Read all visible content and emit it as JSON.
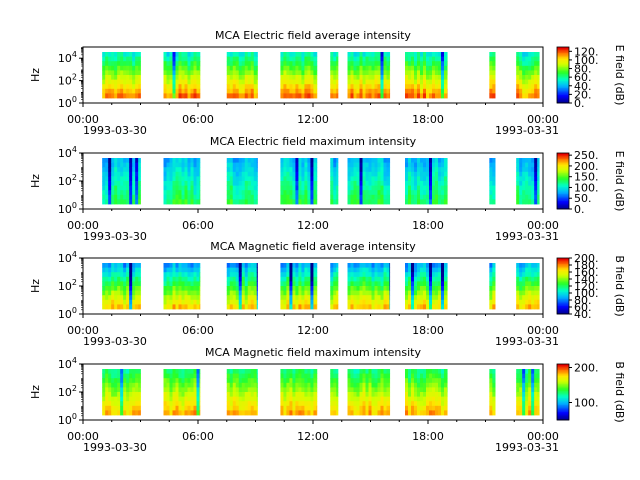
{
  "chart_data": [
    {
      "type": "heatmap",
      "title": "MCA  Electric field average intensity",
      "ylabel": "Hz",
      "yscale": "log",
      "ylim": [
        1,
        100000
      ],
      "ytick_labels": [
        "10^0",
        "10^2",
        "10^4"
      ],
      "x_date_label": "1993-03-30",
      "x_date_label_right": "1993-03-31",
      "x_tick_labels": [
        "00:00",
        "06:00",
        "12:00",
        "18:00",
        "00:00"
      ],
      "colorbar": {
        "label": "E field (dB)",
        "range": [
          0,
          130
        ],
        "ticks": [
          0,
          20,
          40,
          60,
          80,
          100,
          120
        ],
        "tick_labels": [
          "0.",
          "20.",
          "40.",
          "60.",
          "80.",
          "100.",
          "120."
        ]
      },
      "data_segments_hours": [
        [
          1.0,
          3.0
        ],
        [
          4.2,
          6.1
        ],
        [
          7.5,
          9.1
        ],
        [
          10.3,
          12.2
        ],
        [
          12.9,
          13.3
        ],
        [
          13.8,
          16.0
        ],
        [
          16.8,
          19.0
        ],
        [
          21.2,
          21.5
        ],
        [
          22.6,
          23.8
        ]
      ]
    },
    {
      "type": "heatmap",
      "title": "MCA  Electric field maximum intensity",
      "ylabel": "Hz",
      "yscale": "log",
      "ylim": [
        1,
        10000
      ],
      "ytick_labels": [
        "10^0",
        "10^2",
        "10^4"
      ],
      "x_date_label": "1993-03-30",
      "x_date_label_right": "1993-03-31",
      "x_tick_labels": [
        "00:00",
        "06:00",
        "12:00",
        "18:00",
        "00:00"
      ],
      "colorbar": {
        "label": "E field (dB)",
        "range": [
          0,
          260
        ],
        "ticks": [
          0,
          50,
          100,
          150,
          200,
          250
        ],
        "tick_labels": [
          "0.",
          "50.",
          "100.",
          "150.",
          "200.",
          "250."
        ]
      },
      "data_segments_hours": [
        [
          1.0,
          3.0
        ],
        [
          4.2,
          6.1
        ],
        [
          7.5,
          9.1
        ],
        [
          10.3,
          12.2
        ],
        [
          12.9,
          13.3
        ],
        [
          13.8,
          16.0
        ],
        [
          16.8,
          19.0
        ],
        [
          21.2,
          21.5
        ],
        [
          22.6,
          23.8
        ]
      ]
    },
    {
      "type": "heatmap",
      "title": "MCA  Magnetic field average intensity",
      "ylabel": "Hz",
      "yscale": "log",
      "ylim": [
        1,
        10000
      ],
      "ytick_labels": [
        "10^0",
        "10^2",
        "10^4"
      ],
      "x_date_label": "1993-03-30",
      "x_date_label_right": "1993-03-31",
      "x_tick_labels": [
        "00:00",
        "06:00",
        "12:00",
        "18:00",
        "00:00"
      ],
      "colorbar": {
        "label": "B field (dB)",
        "range": [
          40,
          200
        ],
        "ticks": [
          40,
          60,
          80,
          100,
          120,
          140,
          160,
          180,
          200
        ],
        "tick_labels": [
          "40.",
          "60.",
          "80.",
          "100.",
          "120.",
          "140.",
          "160.",
          "180.",
          "200."
        ]
      },
      "data_segments_hours": [
        [
          1.0,
          3.0
        ],
        [
          4.2,
          6.1
        ],
        [
          7.5,
          9.1
        ],
        [
          10.3,
          12.2
        ],
        [
          12.9,
          13.3
        ],
        [
          13.8,
          16.0
        ],
        [
          16.8,
          19.0
        ],
        [
          21.2,
          21.5
        ],
        [
          22.6,
          23.8
        ]
      ]
    },
    {
      "type": "heatmap",
      "title": "MCA  Magnetic field maximum intensity",
      "ylabel": "Hz",
      "yscale": "log",
      "ylim": [
        1,
        10000
      ],
      "ytick_labels": [
        "10^0",
        "10^2",
        "10^4"
      ],
      "x_date_label": "1993-03-30",
      "x_date_label_right": "1993-03-31",
      "x_tick_labels": [
        "00:00",
        "06:00",
        "12:00",
        "18:00",
        "00:00"
      ],
      "colorbar": {
        "label": "B field (dB)",
        "range": [
          50,
          210
        ],
        "ticks": [
          100,
          200
        ],
        "tick_labels": [
          "100.",
          "200."
        ]
      },
      "data_segments_hours": [
        [
          1.0,
          3.0
        ],
        [
          4.2,
          6.1
        ],
        [
          7.5,
          9.1
        ],
        [
          10.3,
          12.2
        ],
        [
          12.9,
          13.3
        ],
        [
          13.8,
          16.0
        ],
        [
          16.8,
          19.0
        ],
        [
          21.2,
          21.5
        ],
        [
          22.6,
          23.8
        ]
      ]
    }
  ]
}
